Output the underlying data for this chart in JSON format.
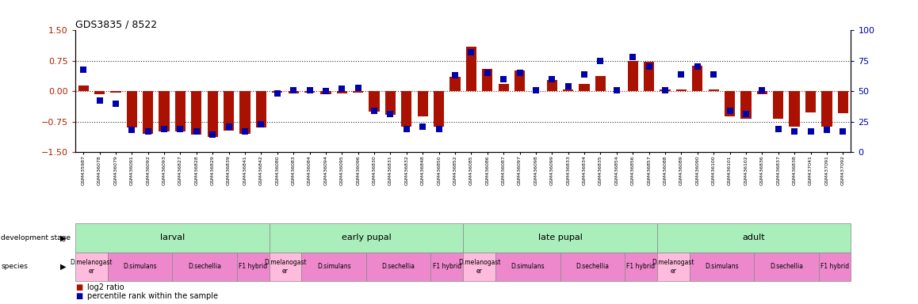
{
  "title": "GDS3835 / 8522",
  "ylim_left": [
    -1.5,
    1.5
  ],
  "ylim_right": [
    0,
    100
  ],
  "yticks_left": [
    -1.5,
    -0.75,
    0,
    0.75,
    1.5
  ],
  "yticks_right": [
    0,
    25,
    50,
    75,
    100
  ],
  "samples": [
    "GSM435987",
    "GSM436078",
    "GSM436079",
    "GSM436091",
    "GSM436092",
    "GSM436093",
    "GSM436827",
    "GSM436828",
    "GSM436829",
    "GSM436839",
    "GSM436841",
    "GSM436842",
    "GSM436080",
    "GSM436083",
    "GSM436084",
    "GSM436094",
    "GSM436095",
    "GSM436096",
    "GSM436830",
    "GSM436831",
    "GSM436832",
    "GSM436848",
    "GSM436850",
    "GSM436852",
    "GSM436085",
    "GSM436086",
    "GSM436087",
    "GSM436097",
    "GSM436098",
    "GSM436099",
    "GSM436833",
    "GSM436834",
    "GSM436835",
    "GSM436854",
    "GSM436856",
    "GSM436857",
    "GSM436088",
    "GSM436089",
    "GSM436090",
    "GSM436100",
    "GSM436101",
    "GSM436102",
    "GSM436836",
    "GSM436837",
    "GSM436838",
    "GSM437041",
    "GSM437091",
    "GSM437092"
  ],
  "log2_ratio": [
    0.15,
    -0.08,
    -0.04,
    -0.9,
    -1.05,
    -1.0,
    -1.0,
    -1.08,
    -1.12,
    -0.98,
    -1.05,
    -0.9,
    -0.04,
    -0.05,
    -0.03,
    -0.08,
    -0.05,
    -0.03,
    -0.5,
    -0.58,
    -0.88,
    -0.62,
    -0.88,
    0.35,
    1.1,
    0.55,
    0.18,
    0.52,
    0.0,
    0.28,
    0.05,
    0.18,
    0.38,
    0.0,
    0.75,
    0.72,
    0.05,
    0.05,
    0.62,
    0.05,
    -0.62,
    -0.68,
    -0.08,
    -0.68,
    -0.88,
    -0.52,
    -0.88,
    -0.55
  ],
  "percentile": [
    68,
    42,
    40,
    18,
    17,
    19,
    19,
    17,
    14,
    21,
    17,
    23,
    48,
    51,
    51,
    50,
    52,
    53,
    34,
    31,
    19,
    21,
    19,
    63,
    82,
    65,
    60,
    65,
    51,
    60,
    54,
    64,
    75,
    51,
    78,
    70,
    51,
    64,
    70,
    64,
    34,
    31,
    51,
    19,
    17,
    17,
    18,
    17
  ],
  "stage_spans": [
    {
      "label": "larval",
      "start": 0,
      "end": 12
    },
    {
      "label": "early pupal",
      "start": 12,
      "end": 24
    },
    {
      "label": "late pupal",
      "start": 24,
      "end": 36
    },
    {
      "label": "adult",
      "start": 36,
      "end": 48
    }
  ],
  "stage_color": "#aaeebb",
  "species_colors_list": [
    "#ffbbdd",
    "#ee88cc",
    "#ee88cc",
    "#ee88cc"
  ],
  "species_labels": [
    "D.melanogast\ner",
    "D.simulans",
    "D.sechellia",
    "F1 hybrid"
  ],
  "species_counts": [
    2,
    4,
    4,
    2
  ],
  "bar_color": "#aa1100",
  "dot_color": "#0000aa",
  "left_label_color": "#aa2200",
  "right_label_color": "#0000aa"
}
